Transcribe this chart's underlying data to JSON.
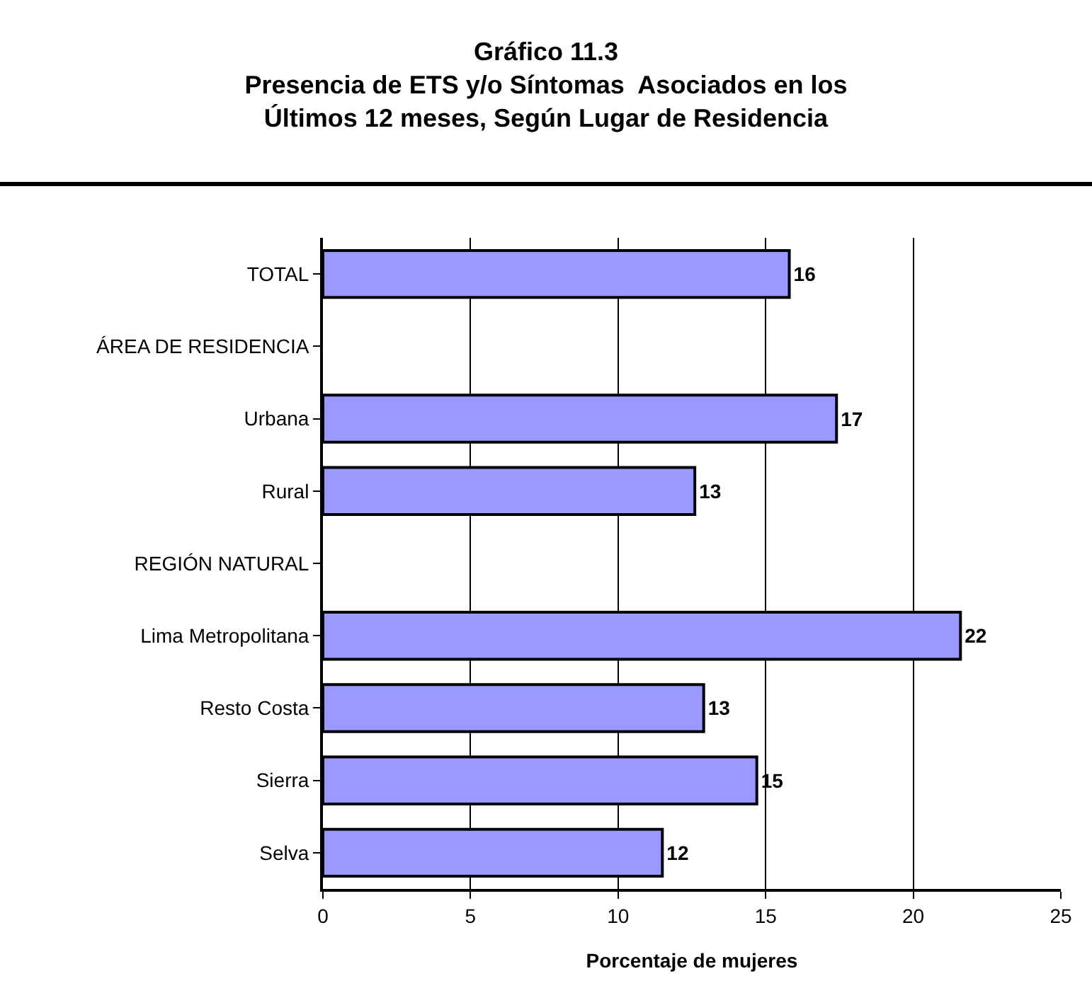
{
  "chart_data": {
    "type": "bar",
    "orientation": "horizontal",
    "title": "Gráfico 11.3\nPresencia de ETS y/o Síntomas  Asociados en los\nÚltimos 12 meses, Según Lugar de Residencia",
    "xlabel": "Porcentaje de mujeres",
    "categories": [
      "TOTAL",
      "ÁREA DE RESIDENCIA",
      "Urbana",
      "Rural",
      "REGIÓN NATURAL",
      "Lima Metropolitana",
      "Resto Costa",
      "Sierra",
      "Selva"
    ],
    "values": [
      15.8,
      null,
      17.4,
      12.6,
      null,
      21.6,
      12.9,
      14.7,
      11.5
    ],
    "value_labels": [
      "16",
      null,
      "17",
      "13",
      null,
      "22",
      "13",
      "15",
      "12"
    ],
    "color": "#9999ff",
    "xlim": [
      0,
      25
    ],
    "xticks": [
      0,
      5,
      10,
      15,
      20,
      25
    ],
    "grid": "x",
    "legend": false
  }
}
